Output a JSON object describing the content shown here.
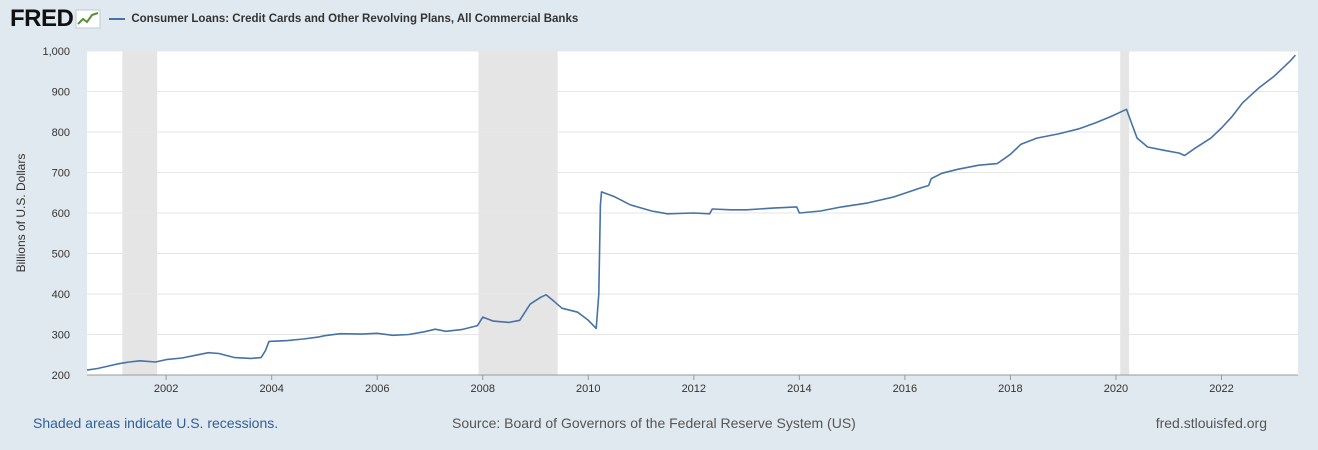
{
  "header": {
    "logo_text": "FRED",
    "series_title": "Consumer Loans: Credit Cards and Other Revolving Plans, All Commercial Banks"
  },
  "footer": {
    "recession_note": "Shaded areas indicate U.S. recessions.",
    "source": "Source: Board of Governors of the Federal Reserve System (US)",
    "site": "fred.stlouisfed.org"
  },
  "colors": {
    "line": "#4572a7",
    "recession": "#e5e5e5",
    "grid": "#e6e6e6",
    "plot_bg": "#ffffff",
    "page_bg": "#e1e9f0"
  },
  "chart_data": {
    "type": "line",
    "title": "",
    "xlabel": "",
    "ylabel": "Billions of U.S. Dollars",
    "xlim": [
      2000.5,
      2023.45
    ],
    "ylim": [
      200,
      1000
    ],
    "grid": true,
    "legend": "top-left",
    "y_ticks": [
      200,
      300,
      400,
      500,
      600,
      700,
      800,
      900,
      1000
    ],
    "y_tick_labels": [
      "200",
      "300",
      "400",
      "500",
      "600",
      "700",
      "800",
      "900",
      "1,000"
    ],
    "x_ticks": [
      2002,
      2004,
      2006,
      2008,
      2010,
      2012,
      2014,
      2016,
      2018,
      2020,
      2022
    ],
    "x_tick_labels": [
      "2002",
      "2004",
      "2006",
      "2008",
      "2010",
      "2012",
      "2014",
      "2016",
      "2018",
      "2020",
      "2022"
    ],
    "recessions": [
      [
        2001.17,
        2001.83
      ],
      [
        2007.92,
        2009.42
      ],
      [
        2020.08,
        2020.25
      ]
    ],
    "series": [
      {
        "name": "Consumer Loans: Credit Cards and Other Revolving Plans, All Commercial Banks",
        "points": [
          [
            2000.5,
            212
          ],
          [
            2000.7,
            216
          ],
          [
            2000.9,
            222
          ],
          [
            2001.1,
            228
          ],
          [
            2001.3,
            232
          ],
          [
            2001.5,
            235
          ],
          [
            2001.8,
            232
          ],
          [
            2002.0,
            238
          ],
          [
            2002.3,
            242
          ],
          [
            2002.6,
            250
          ],
          [
            2002.8,
            255
          ],
          [
            2003.0,
            253
          ],
          [
            2003.3,
            243
          ],
          [
            2003.6,
            241
          ],
          [
            2003.8,
            243
          ],
          [
            2003.88,
            260
          ],
          [
            2003.95,
            283
          ],
          [
            2004.3,
            285
          ],
          [
            2004.6,
            289
          ],
          [
            2004.9,
            294
          ],
          [
            2005.0,
            297
          ],
          [
            2005.3,
            302
          ],
          [
            2005.7,
            301
          ],
          [
            2006.0,
            303
          ],
          [
            2006.3,
            298
          ],
          [
            2006.6,
            300
          ],
          [
            2006.9,
            307
          ],
          [
            2007.1,
            313
          ],
          [
            2007.3,
            308
          ],
          [
            2007.6,
            312
          ],
          [
            2007.9,
            322
          ],
          [
            2008.0,
            343
          ],
          [
            2008.2,
            333
          ],
          [
            2008.5,
            330
          ],
          [
            2008.7,
            335
          ],
          [
            2008.9,
            375
          ],
          [
            2009.1,
            392
          ],
          [
            2009.2,
            398
          ],
          [
            2009.35,
            382
          ],
          [
            2009.5,
            365
          ],
          [
            2009.8,
            355
          ],
          [
            2010.0,
            335
          ],
          [
            2010.15,
            315
          ],
          [
            2010.2,
            400
          ],
          [
            2010.23,
            620
          ],
          [
            2010.25,
            652
          ],
          [
            2010.5,
            640
          ],
          [
            2010.8,
            620
          ],
          [
            2011.2,
            605
          ],
          [
            2011.5,
            598
          ],
          [
            2012.0,
            600
          ],
          [
            2012.3,
            598
          ],
          [
            2012.35,
            610
          ],
          [
            2012.7,
            608
          ],
          [
            2013.0,
            608
          ],
          [
            2013.5,
            612
          ],
          [
            2013.95,
            615
          ],
          [
            2014.0,
            600
          ],
          [
            2014.4,
            605
          ],
          [
            2014.8,
            615
          ],
          [
            2015.3,
            625
          ],
          [
            2015.8,
            640
          ],
          [
            2016.3,
            662
          ],
          [
            2016.45,
            668
          ],
          [
            2016.5,
            685
          ],
          [
            2016.7,
            698
          ],
          [
            2017.0,
            708
          ],
          [
            2017.4,
            718
          ],
          [
            2017.75,
            722
          ],
          [
            2018.0,
            745
          ],
          [
            2018.2,
            770
          ],
          [
            2018.5,
            785
          ],
          [
            2018.9,
            795
          ],
          [
            2019.3,
            808
          ],
          [
            2019.6,
            822
          ],
          [
            2019.9,
            838
          ],
          [
            2020.2,
            856
          ],
          [
            2020.3,
            820
          ],
          [
            2020.4,
            785
          ],
          [
            2020.6,
            763
          ],
          [
            2020.9,
            755
          ],
          [
            2021.2,
            748
          ],
          [
            2021.3,
            742
          ],
          [
            2021.5,
            760
          ],
          [
            2021.8,
            785
          ],
          [
            2022.0,
            810
          ],
          [
            2022.2,
            838
          ],
          [
            2022.4,
            872
          ],
          [
            2022.7,
            908
          ],
          [
            2023.0,
            938
          ],
          [
            2023.3,
            975
          ],
          [
            2023.4,
            990
          ]
        ]
      }
    ]
  }
}
